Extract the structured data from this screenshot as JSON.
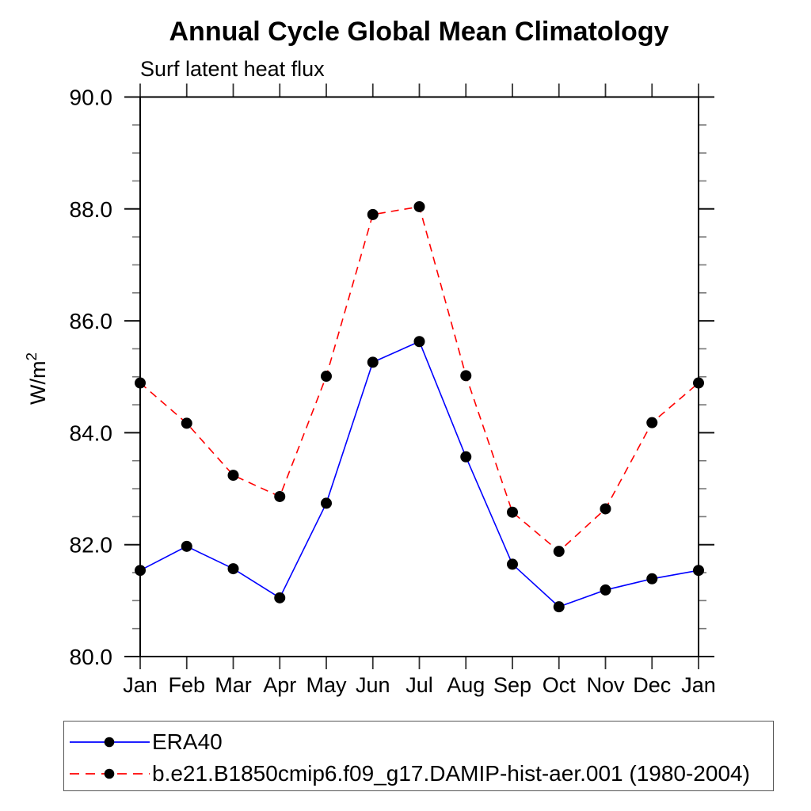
{
  "page": {
    "background_color": "#ffffff"
  },
  "header": {
    "title": "Annual Cycle Global Mean Climatology",
    "subtitle": "Surf latent heat flux"
  },
  "y_axis": {
    "label_base": "W/m",
    "label_exponent": "2",
    "tick_labels": [
      "80.0",
      "82.0",
      "84.0",
      "86.0",
      "88.0",
      "90.0"
    ]
  },
  "x_axis": {
    "tick_labels": [
      "Jan",
      "Feb",
      "Mar",
      "Apr",
      "May",
      "Jun",
      "Jul",
      "Aug",
      "Sep",
      "Oct",
      "Nov",
      "Dec",
      "Jan"
    ]
  },
  "legend": {
    "entries": [
      {
        "label": "ERA40",
        "line_color": "#0000ff",
        "line_style": "solid",
        "marker": "filled-circle",
        "marker_color": "#000000"
      },
      {
        "label": "b.e21.B1850cmip6.f09_g17.DAMIP-hist-aer.001 (1980-2004)",
        "line_color": "#ff0000",
        "line_style": "dashed",
        "marker": "filled-circle",
        "marker_color": "#000000"
      }
    ]
  },
  "chart_data": {
    "type": "line",
    "title": "Annual Cycle Global Mean Climatology",
    "subtitle": "Surf latent heat flux",
    "xlabel": "",
    "ylabel": "W/m²",
    "categories": [
      "Jan",
      "Feb",
      "Mar",
      "Apr",
      "May",
      "Jun",
      "Jul",
      "Aug",
      "Sep",
      "Oct",
      "Nov",
      "Dec",
      "Jan"
    ],
    "ylim": [
      80.0,
      90.0
    ],
    "y_major_tick_interval": 2.0,
    "y_minor_tick_interval": 0.5,
    "grid": false,
    "legend_position": "bottom-left",
    "series": [
      {
        "name": "ERA40",
        "color": "#0000ff",
        "line_style": "solid",
        "marker": "filled-circle",
        "marker_color": "#000000",
        "values": [
          81.54,
          81.97,
          81.57,
          81.05,
          82.74,
          85.26,
          85.63,
          83.57,
          81.65,
          80.89,
          81.19,
          81.39,
          81.54
        ]
      },
      {
        "name": "b.e21.B1850cmip6.f09_g17.DAMIP-hist-aer.001 (1980-2004)",
        "color": "#ff0000",
        "line_style": "dashed",
        "marker": "filled-circle",
        "marker_color": "#000000",
        "values": [
          84.89,
          84.17,
          83.24,
          82.86,
          85.01,
          87.9,
          88.04,
          85.02,
          82.58,
          81.88,
          82.64,
          84.18,
          84.89
        ]
      }
    ]
  }
}
